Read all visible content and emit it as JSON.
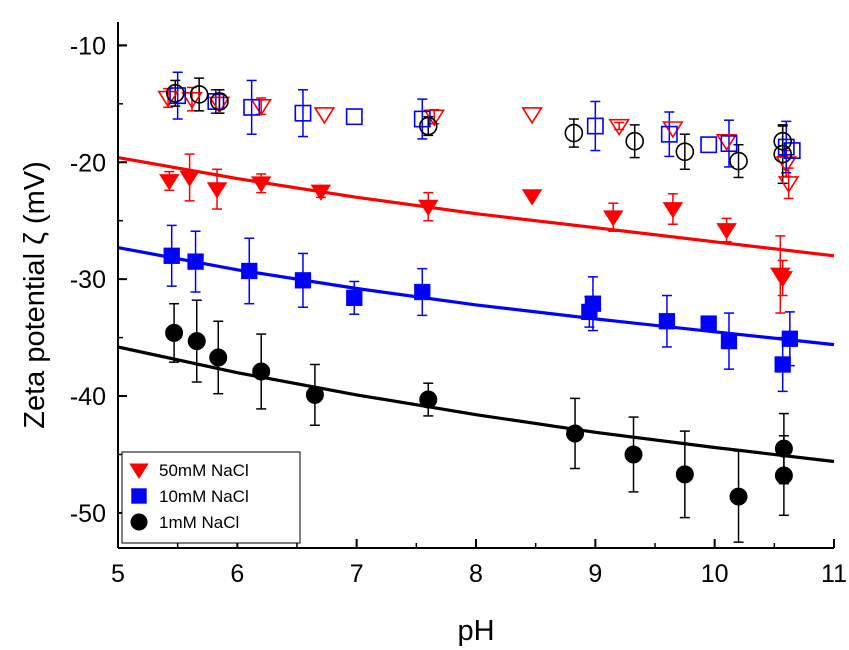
{
  "chart_data": {
    "type": "scatter",
    "xlabel": "pH",
    "ylabel": "Zeta potential ζ (mV)",
    "xlim": [
      5,
      11
    ],
    "ylim": [
      -53,
      -8
    ],
    "x_ticks": [
      5,
      6,
      7,
      8,
      9,
      10,
      11
    ],
    "x_tick_labels": [
      "5",
      "6",
      "7",
      "8",
      "9",
      "10",
      "11"
    ],
    "y_ticks": [
      -50,
      -40,
      -30,
      -20,
      -10
    ],
    "y_tick_labels": [
      "-50",
      "-40",
      "-30",
      "-20",
      "-10"
    ],
    "grid": false,
    "legend_position": "bottom-left",
    "series": [
      {
        "name": "50mM NaCl",
        "color": "#ff0000",
        "marker": "triangle-down",
        "filled": true,
        "points": [
          {
            "x": 5.43,
            "y": -21.6,
            "err": 0.8
          },
          {
            "x": 5.6,
            "y": -21.3,
            "err": 2.0
          },
          {
            "x": 5.83,
            "y": -22.3,
            "err": 1.7
          },
          {
            "x": 6.2,
            "y": -21.8,
            "err": 0.8
          },
          {
            "x": 6.7,
            "y": -22.5,
            "err": 0.5
          },
          {
            "x": 7.6,
            "y": -23.8,
            "err": 1.2
          },
          {
            "x": 8.47,
            "y": -22.9,
            "err": 0
          },
          {
            "x": 9.15,
            "y": -24.7,
            "err": 1.2
          },
          {
            "x": 9.65,
            "y": -24.0,
            "err": 1.3
          },
          {
            "x": 10.1,
            "y": -25.8,
            "err": 1.0
          },
          {
            "x": 10.55,
            "y": -29.6,
            "err": 3.3
          },
          {
            "x": 10.57,
            "y": -29.9,
            "err": 1.5
          }
        ],
        "fit": [
          {
            "x": 5.0,
            "y": -19.6
          },
          {
            "x": 6.0,
            "y": -21.4
          },
          {
            "x": 7.0,
            "y": -23.0
          },
          {
            "x": 8.0,
            "y": -24.4
          },
          {
            "x": 9.0,
            "y": -25.6
          },
          {
            "x": 10.0,
            "y": -26.8
          },
          {
            "x": 11.0,
            "y": -28.0
          }
        ]
      },
      {
        "name": "10mM NaCl",
        "color": "#0000ff",
        "marker": "square",
        "filled": true,
        "points": [
          {
            "x": 5.45,
            "y": -28.0,
            "err": 2.6
          },
          {
            "x": 5.65,
            "y": -28.5,
            "err": 2.6
          },
          {
            "x": 6.1,
            "y": -29.3,
            "err": 2.8
          },
          {
            "x": 6.55,
            "y": -30.1,
            "err": 2.3
          },
          {
            "x": 6.98,
            "y": -31.6,
            "err": 1.4
          },
          {
            "x": 7.55,
            "y": -31.1,
            "err": 2.0
          },
          {
            "x": 8.95,
            "y": -32.8,
            "err": 1.3
          },
          {
            "x": 8.98,
            "y": -32.1,
            "err": 2.3
          },
          {
            "x": 9.6,
            "y": -33.6,
            "err": 2.2
          },
          {
            "x": 9.95,
            "y": -33.8,
            "err": 0
          },
          {
            "x": 10.12,
            "y": -35.3,
            "err": 2.4
          },
          {
            "x": 10.57,
            "y": -37.3,
            "err": 2.3
          },
          {
            "x": 10.63,
            "y": -35.1,
            "err": 2.3
          }
        ],
        "fit": [
          {
            "x": 5.0,
            "y": -27.3
          },
          {
            "x": 6.0,
            "y": -29.2
          },
          {
            "x": 7.0,
            "y": -30.8
          },
          {
            "x": 8.0,
            "y": -32.2
          },
          {
            "x": 9.0,
            "y": -33.4
          },
          {
            "x": 10.0,
            "y": -34.5
          },
          {
            "x": 11.0,
            "y": -35.6
          }
        ]
      },
      {
        "name": "1mM NaCl",
        "color": "#000000",
        "marker": "circle",
        "filled": true,
        "points": [
          {
            "x": 5.47,
            "y": -34.6,
            "err": 2.5
          },
          {
            "x": 5.66,
            "y": -35.3,
            "err": 3.5
          },
          {
            "x": 5.84,
            "y": -36.7,
            "err": 3.1
          },
          {
            "x": 6.2,
            "y": -37.9,
            "err": 3.2
          },
          {
            "x": 6.65,
            "y": -39.9,
            "err": 2.6
          },
          {
            "x": 7.6,
            "y": -40.3,
            "err": 1.4
          },
          {
            "x": 8.83,
            "y": -43.2,
            "err": 3.0
          },
          {
            "x": 9.32,
            "y": -45.0,
            "err": 3.2
          },
          {
            "x": 9.75,
            "y": -46.7,
            "err": 3.7
          },
          {
            "x": 10.2,
            "y": -48.6,
            "err": 3.9
          },
          {
            "x": 10.58,
            "y": -44.5,
            "err": 3.0
          },
          {
            "x": 10.58,
            "y": -46.8,
            "err": 3.4
          }
        ],
        "fit": [
          {
            "x": 5.0,
            "y": -35.8
          },
          {
            "x": 6.0,
            "y": -38.0
          },
          {
            "x": 7.0,
            "y": -39.9
          },
          {
            "x": 8.0,
            "y": -41.6
          },
          {
            "x": 9.0,
            "y": -43.1
          },
          {
            "x": 10.0,
            "y": -44.4
          },
          {
            "x": 11.0,
            "y": -45.6
          }
        ]
      },
      {
        "color": "#ff0000",
        "marker": "triangle-down",
        "filled": false,
        "points": [
          {
            "x": 5.42,
            "y": -14.5,
            "err": 0.8
          },
          {
            "x": 5.62,
            "y": -14.6,
            "err": 1.0
          },
          {
            "x": 5.85,
            "y": -15.0,
            "err": 0.8
          },
          {
            "x": 6.2,
            "y": -15.2,
            "err": 0.7
          },
          {
            "x": 6.73,
            "y": -15.9,
            "err": 0
          },
          {
            "x": 7.65,
            "y": -16.1,
            "err": 0.6
          },
          {
            "x": 8.47,
            "y": -15.9,
            "err": 0
          },
          {
            "x": 9.2,
            "y": -16.9,
            "err": 0.3
          },
          {
            "x": 9.65,
            "y": -17.1,
            "err": 0
          },
          {
            "x": 10.1,
            "y": -18.2,
            "err": 0
          },
          {
            "x": 10.6,
            "y": -20.1,
            "err": 1.1
          },
          {
            "x": 10.62,
            "y": -21.8,
            "err": 1.3
          }
        ]
      },
      {
        "color": "#0000ff",
        "marker": "square",
        "filled": false,
        "points": [
          {
            "x": 5.5,
            "y": -14.3,
            "err": 2.0
          },
          {
            "x": 5.82,
            "y": -14.8,
            "err": 1.0
          },
          {
            "x": 6.12,
            "y": -15.3,
            "err": 2.3
          },
          {
            "x": 6.55,
            "y": -15.8,
            "err": 2.0
          },
          {
            "x": 6.98,
            "y": -16.1,
            "err": 0
          },
          {
            "x": 7.55,
            "y": -16.3,
            "err": 1.7
          },
          {
            "x": 9.0,
            "y": -16.9,
            "err": 2.1
          },
          {
            "x": 9.62,
            "y": -17.6,
            "err": 1.9
          },
          {
            "x": 9.95,
            "y": -18.5,
            "err": 0
          },
          {
            "x": 10.12,
            "y": -18.4,
            "err": 2.0
          },
          {
            "x": 10.6,
            "y": -18.7,
            "err": 2.2
          },
          {
            "x": 10.65,
            "y": -19.0,
            "err": 0
          }
        ]
      },
      {
        "color": "#000000",
        "marker": "circle",
        "filled": false,
        "points": [
          {
            "x": 5.48,
            "y": -14.1,
            "err": 1.1
          },
          {
            "x": 5.68,
            "y": -14.2,
            "err": 1.4
          },
          {
            "x": 5.85,
            "y": -14.8,
            "err": 1.0
          },
          {
            "x": 7.6,
            "y": -16.9,
            "err": 0.8
          },
          {
            "x": 8.82,
            "y": -17.5,
            "err": 1.2
          },
          {
            "x": 9.33,
            "y": -18.2,
            "err": 1.4
          },
          {
            "x": 9.75,
            "y": -19.1,
            "err": 1.5
          },
          {
            "x": 10.2,
            "y": -19.9,
            "err": 1.4
          },
          {
            "x": 10.57,
            "y": -18.2,
            "err": 1.3
          },
          {
            "x": 10.57,
            "y": -19.3,
            "err": 2.5
          }
        ]
      }
    ]
  }
}
